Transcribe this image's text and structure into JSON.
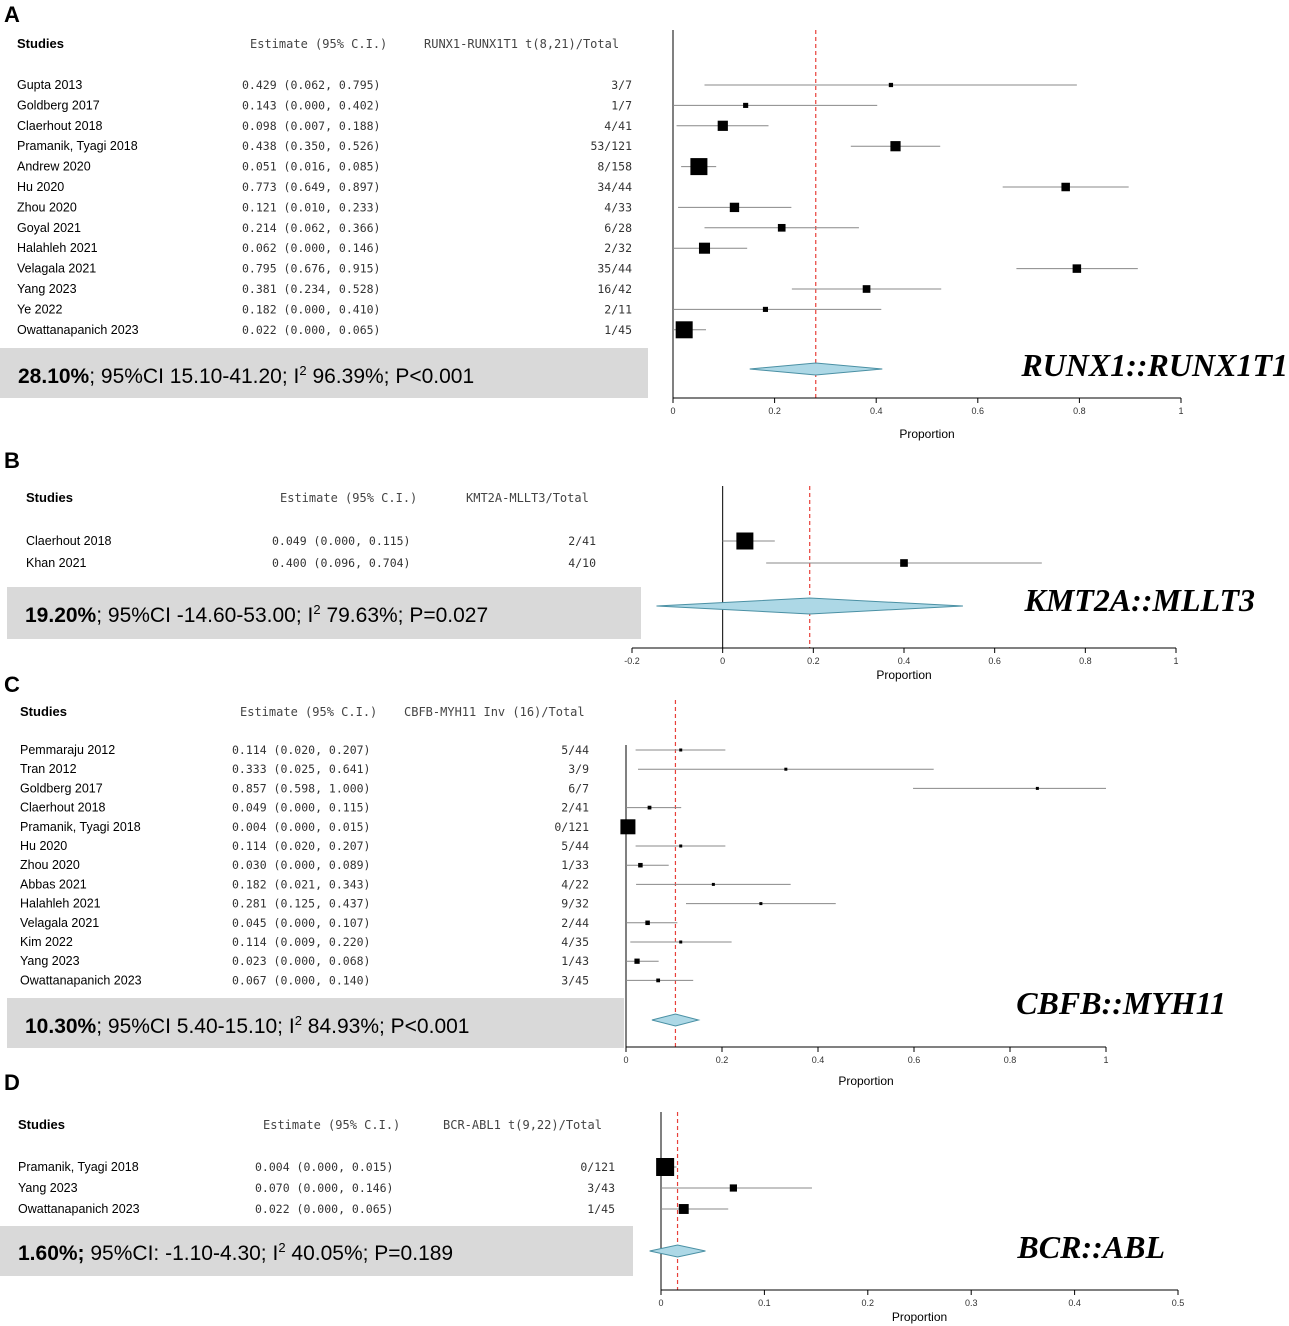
{
  "chart_data": [
    {
      "type": "forest",
      "panel": "A",
      "header": {
        "studies": "Studies",
        "estimate": "Estimate (95% C.I.)",
        "events": "RUNX1-RUNX1T1 t(8,21)/Total"
      },
      "studies": [
        {
          "name": "Gupta 2013",
          "est": 0.429,
          "lo": 0.062,
          "hi": 0.795,
          "ci_text": "0.429 (0.062, 0.795)",
          "events": "3/7",
          "w": 0.25
        },
        {
          "name": "Goldberg 2017",
          "est": 0.143,
          "lo": 0.0,
          "hi": 0.402,
          "ci_text": "0.143 (0.000, 0.402)",
          "events": "1/7",
          "w": 0.3
        },
        {
          "name": "Claerhout 2018",
          "est": 0.098,
          "lo": 0.007,
          "hi": 0.188,
          "ci_text": "0.098 (0.007, 0.188)",
          "events": "4/41",
          "w": 0.6
        },
        {
          "name": "Pramanik, Tyagi 2018",
          "est": 0.438,
          "lo": 0.35,
          "hi": 0.526,
          "ci_text": "0.438 (0.350, 0.526)",
          "events": "53/121",
          "w": 0.6
        },
        {
          "name": "Andrew 2020",
          "est": 0.051,
          "lo": 0.016,
          "hi": 0.085,
          "ci_text": "0.051 (0.016, 0.085)",
          "events": "8/158",
          "w": 1.0
        },
        {
          "name": "Hu 2020",
          "est": 0.773,
          "lo": 0.649,
          "hi": 0.897,
          "ci_text": "0.773 (0.649, 0.897)",
          "events": "34/44",
          "w": 0.5
        },
        {
          "name": "Zhou 2020",
          "est": 0.121,
          "lo": 0.01,
          "hi": 0.233,
          "ci_text": "0.121 (0.010, 0.233)",
          "events": "4/33",
          "w": 0.55
        },
        {
          "name": "Goyal 2021",
          "est": 0.214,
          "lo": 0.062,
          "hi": 0.366,
          "ci_text": "0.214 (0.062, 0.366)",
          "events": "6/28",
          "w": 0.45
        },
        {
          "name": "Halahleh 2021",
          "est": 0.062,
          "lo": 0.0,
          "hi": 0.146,
          "ci_text": "0.062 (0.000, 0.146)",
          "events": "2/32",
          "w": 0.65
        },
        {
          "name": "Velagala 2021",
          "est": 0.795,
          "lo": 0.676,
          "hi": 0.915,
          "ci_text": "0.795 (0.676, 0.915)",
          "events": "35/44",
          "w": 0.5
        },
        {
          "name": "Yang 2023",
          "est": 0.381,
          "lo": 0.234,
          "hi": 0.528,
          "ci_text": "0.381 (0.234, 0.528)",
          "events": "16/42",
          "w": 0.45
        },
        {
          "name": "Ye 2022",
          "est": 0.182,
          "lo": 0.0,
          "hi": 0.41,
          "ci_text": "0.182 (0.000, 0.410)",
          "events": "2/11",
          "w": 0.3
        },
        {
          "name": "Owattanapanich 2023",
          "est": 0.022,
          "lo": 0.0,
          "hi": 0.065,
          "ci_text": "0.022 (0.000, 0.065)",
          "events": "1/45",
          "w": 1.0
        }
      ],
      "pooled": {
        "est": 0.281,
        "lo": 0.151,
        "hi": 0.412
      },
      "summary_bold": "28.10%",
      "summary_rest": "; 95%CI 15.10-41.20; I",
      "summary_sup": "2",
      "summary_tail": " 96.39%; P<0.001",
      "gene_label": "RUNX1::RUNX1T1",
      "xlim": [
        0,
        1
      ],
      "ticks": [
        "0",
        "0.2",
        "0.4",
        "0.6",
        "0.8",
        "1"
      ],
      "xlabel": "Proportion"
    },
    {
      "type": "forest",
      "panel": "B",
      "header": {
        "studies": "Studies",
        "estimate": "Estimate (95% C.I.)",
        "events": "KMT2A-MLLT3/Total"
      },
      "studies": [
        {
          "name": "Claerhout 2018",
          "est": 0.049,
          "lo": 0.0,
          "hi": 0.115,
          "ci_text": "0.049   (0.000, 0.115)",
          "events": "2/41",
          "w": 1.0
        },
        {
          "name": "Khan 2021",
          "est": 0.4,
          "lo": 0.096,
          "hi": 0.704,
          "ci_text": "0.400   (0.096, 0.704)",
          "events": "4/10",
          "w": 0.45
        }
      ],
      "pooled": {
        "est": 0.192,
        "lo": -0.146,
        "hi": 0.53
      },
      "summary_bold": "19.20%",
      "summary_rest": "; 95%CI -14.60-53.00; I",
      "summary_sup": "2",
      "summary_tail": " 79.63%; P=0.027",
      "gene_label": "KMT2A::MLLT3",
      "xlim": [
        -0.2,
        1
      ],
      "ticks": [
        "-0.2",
        "0",
        "0.2",
        "0.4",
        "0.6",
        "0.8",
        "1"
      ],
      "xlabel": "Proportion"
    },
    {
      "type": "forest",
      "panel": "C",
      "header": {
        "studies": "Studies",
        "estimate": "Estimate (95% C.I.)",
        "events": "CBFB-MYH11 Inv (16)/Total"
      },
      "studies": [
        {
          "name": "Pemmaraju 2012",
          "est": 0.114,
          "lo": 0.02,
          "hi": 0.207,
          "ci_text": "0.114 (0.020, 0.207)",
          "events": "5/44",
          "w": 0.2
        },
        {
          "name": "Tran 2012",
          "est": 0.333,
          "lo": 0.025,
          "hi": 0.641,
          "ci_text": "0.333 (0.025, 0.641)",
          "events": "3/9",
          "w": 0.1
        },
        {
          "name": "Goldberg 2017",
          "est": 0.857,
          "lo": 0.598,
          "hi": 1.0,
          "ci_text": "0.857 (0.598, 1.000)",
          "events": "6/7",
          "w": 0.1
        },
        {
          "name": "Claerhout 2018",
          "est": 0.049,
          "lo": 0.0,
          "hi": 0.115,
          "ci_text": "0.049 (0.000, 0.115)",
          "events": "2/41",
          "w": 0.25
        },
        {
          "name": "Pramanik, Tyagi 2018",
          "est": 0.004,
          "lo": 0.0,
          "hi": 0.015,
          "ci_text": "0.004 (0.000, 0.015)",
          "events": "0/121",
          "w": 1.0
        },
        {
          "name": "Hu 2020",
          "est": 0.114,
          "lo": 0.02,
          "hi": 0.207,
          "ci_text": "0.114 (0.020, 0.207)",
          "events": "5/44",
          "w": 0.2
        },
        {
          "name": "Zhou 2020",
          "est": 0.03,
          "lo": 0.0,
          "hi": 0.089,
          "ci_text": "0.030 (0.000, 0.089)",
          "events": "1/33",
          "w": 0.3
        },
        {
          "name": "Abbas 2021",
          "est": 0.182,
          "lo": 0.021,
          "hi": 0.343,
          "ci_text": "0.182 (0.021, 0.343)",
          "events": "4/22",
          "w": 0.15
        },
        {
          "name": "Halahleh 2021",
          "est": 0.281,
          "lo": 0.125,
          "hi": 0.437,
          "ci_text": "0.281 (0.125, 0.437)",
          "events": "9/32",
          "w": 0.15
        },
        {
          "name": "Velagala 2021",
          "est": 0.045,
          "lo": 0.0,
          "hi": 0.107,
          "ci_text": "0.045 (0.000, 0.107)",
          "events": "2/44",
          "w": 0.3
        },
        {
          "name": "Kim 2022",
          "est": 0.114,
          "lo": 0.009,
          "hi": 0.22,
          "ci_text": "0.114 (0.009, 0.220)",
          "events": "4/35",
          "w": 0.2
        },
        {
          "name": "Yang 2023",
          "est": 0.023,
          "lo": 0.0,
          "hi": 0.068,
          "ci_text": "0.023 (0.000, 0.068)",
          "events": "1/43",
          "w": 0.35
        },
        {
          "name": "Owattanapanich 2023",
          "est": 0.067,
          "lo": 0.0,
          "hi": 0.14,
          "ci_text": "0.067 (0.000, 0.140)",
          "events": "3/45",
          "w": 0.25
        }
      ],
      "pooled": {
        "est": 0.103,
        "lo": 0.054,
        "hi": 0.151
      },
      "summary_bold": "10.30%",
      "summary_rest": "; 95%CI 5.40-15.10; I",
      "summary_sup": "2",
      "summary_tail": " 84.93%; P<0.001",
      "gene_label": "CBFB::MYH11",
      "xlim": [
        0,
        1
      ],
      "ticks": [
        "0",
        "0.2",
        "0.4",
        "0.6",
        "0.8",
        "1"
      ],
      "xlabel": "Proportion"
    },
    {
      "type": "forest",
      "panel": "D",
      "header": {
        "studies": "Studies",
        "estimate": "Estimate (95% C.I.)",
        "events": "BCR-ABL1 t(9,22)/Total"
      },
      "studies": [
        {
          "name": "Pramanik, Tyagi 2018",
          "est": 0.004,
          "lo": 0.0,
          "hi": 0.015,
          "ci_text": "0.004   (0.000, 0.015)",
          "events": "0/121",
          "w": 1.0
        },
        {
          "name": "Yang 2023",
          "est": 0.07,
          "lo": 0.0,
          "hi": 0.146,
          "ci_text": "0.070   (0.000, 0.146)",
          "events": "3/43",
          "w": 0.4
        },
        {
          "name": "Owattanapanich 2023",
          "est": 0.022,
          "lo": 0.0,
          "hi": 0.065,
          "ci_text": "0.022   (0.000, 0.065)",
          "events": "1/45",
          "w": 0.55
        }
      ],
      "pooled": {
        "est": 0.016,
        "lo": -0.011,
        "hi": 0.043
      },
      "summary_bold": "1.60%;",
      "summary_rest": " 95%CI: -1.10-4.30; I",
      "summary_sup": "2",
      "summary_tail": " 40.05%; P=0.189",
      "gene_label": "BCR::ABL",
      "xlim": [
        0,
        0.5
      ],
      "ticks": [
        "0",
        "0.1",
        "0.2",
        "0.3",
        "0.4",
        "0.5"
      ],
      "xlabel": "Proportion"
    }
  ],
  "colors": {
    "diamond_fill": "#add8e6",
    "diamond_stroke": "#4a90a4",
    "ref_line": "#e8403a",
    "summary_bg": "#d9d9d9",
    "ci_line": "#888888",
    "marker": "#000000"
  }
}
